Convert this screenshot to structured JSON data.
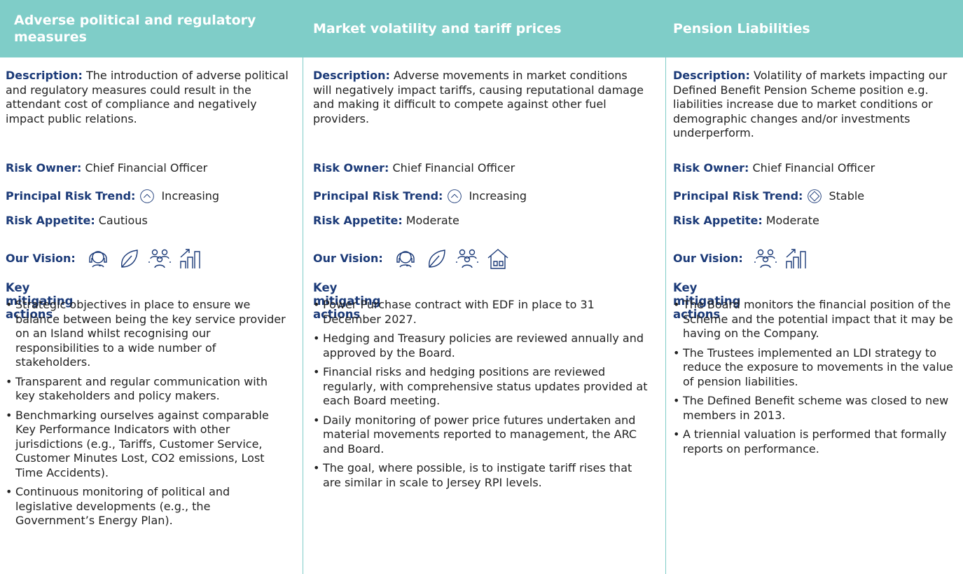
{
  "columns": [
    {
      "title": "Adverse political and regulatory measures",
      "description_label": "Description:",
      "description": "The introduction of adverse political and regulatory measures could result in the attendant cost of compliance and negatively impact public relations.",
      "owner_label": "Risk Owner:",
      "owner": "Chief Financial Officer",
      "trend_label": "Principal Risk Trend:",
      "trend": "Increasing",
      "appetite_label": "Risk Appetite:",
      "appetite": "Cautious",
      "vision_label": "Our Vision:",
      "actions_title": "Key mitigating actions",
      "actions": [
        "Strategic objectives in place to ensure we balance between being the key service provider on an Island whilst recognising our responsibilities to a wide number of stakeholders.",
        "Transparent and regular communication with key stakeholders and policy makers.",
        "Benchmarking ourselves against comparable Key Performance Indicators with other jurisdictions (e.g., Tariffs, Customer Service, Customer Minutes Lost, CO2 emissions, Lost Time Accidents).",
        "Continuous monitoring of political and legislative developments (e.g., the Government’s Energy Plan)."
      ]
    },
    {
      "title": "Market volatility and tariff prices",
      "description_label": "Description:",
      "description": "Adverse movements in market conditions will negatively impact tariffs, causing reputational damage and making it difficult to compete against other fuel providers.",
      "owner_label": "Risk Owner:",
      "owner": "Chief Financial Officer",
      "trend_label": "Principal Risk Trend:",
      "trend": "Increasing",
      "appetite_label": "Risk Appetite:",
      "appetite": "Moderate",
      "vision_label": "Our Vision:",
      "actions_title": "Key mitigating actions",
      "actions": [
        "Power Purchase contract with EDF in place to 31 December 2027.",
        "Hedging and Treasury policies are reviewed annually and approved by the Board.",
        "Financial risks and hedging positions are reviewed regularly, with comprehensive status updates provided at each Board meeting.",
        "Daily monitoring of power price futures undertaken and material movements reported to management, the ARC and Board.",
        "The goal, where possible, is to instigate tariff rises that are similar in scale to Jersey RPI levels."
      ]
    },
    {
      "title": "Pension Liabilities",
      "description_label": "Description:",
      "description": "Volatility of markets impacting our Defined Benefit Pension Scheme position e.g. liabilities increase due to market conditions or demographic changes and/or investments underperform.",
      "owner_label": "Risk Owner:",
      "owner": "Chief Financial Officer",
      "trend_label": "Principal Risk Trend:",
      "trend": "Stable",
      "appetite_label": "Risk Appetite:",
      "appetite": "Moderate",
      "vision_label": "Our Vision:",
      "actions_title": "Key mitigating actions",
      "actions": [
        "The Board monitors the financial position of the Scheme and the potential impact that it may be having on the Company.",
        "The Trustees implemented an LDI strategy to reduce the exposure to movements in the value of pension liabilities.",
        "The Defined Benefit scheme was closed to new members in 2013.",
        "A triennial valuation is performed that formally reports on performance."
      ]
    }
  ]
}
